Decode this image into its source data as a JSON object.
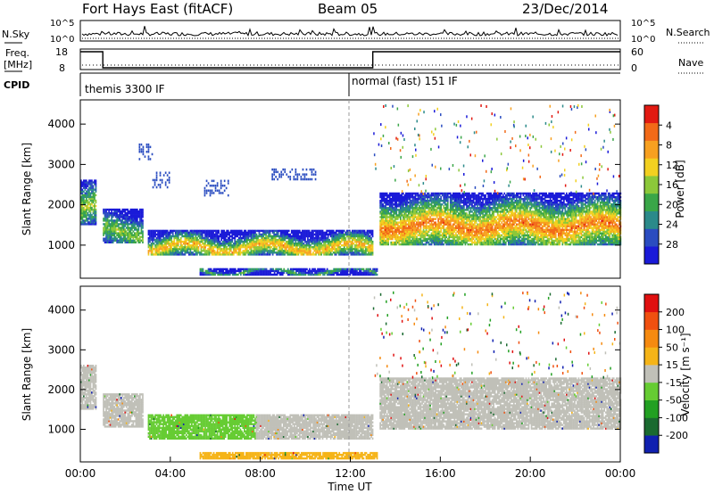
{
  "header": {
    "title": "Fort Hays East (fitACF)",
    "beam": "Beam 05",
    "date": "23/Dec/2014"
  },
  "noise_panel": {
    "left_label": "N.Sky",
    "right_label": "N.Search",
    "left_ticks": [
      "10^5",
      "10^0"
    ],
    "right_ticks": [
      "10^5",
      "10^0"
    ],
    "scale": "log"
  },
  "freq_panel": {
    "left_label_1": "Freq.",
    "left_label_2": "[MHz]",
    "right_label": "Nave",
    "left_ticks": [
      "18",
      "8"
    ],
    "right_ticks": [
      "60",
      "0"
    ],
    "freq_steps": [
      {
        "from_hour": 0,
        "to_hour": 1,
        "value_mhz": 18
      },
      {
        "from_hour": 1,
        "to_hour": 13,
        "value_mhz": 8
      },
      {
        "from_hour": 13,
        "to_hour": 24,
        "value_mhz": 18
      }
    ]
  },
  "cpid": {
    "label": "CPID",
    "modes": [
      {
        "label": "themis 3300 IF",
        "start_hour": 0
      },
      {
        "label": "normal (fast) 151 IF",
        "start_hour": 12
      }
    ]
  },
  "chart_data": [
    {
      "type": "heatmap",
      "quantity": "Power",
      "ylabel": "Slant Range [km]",
      "ylim": [
        180,
        4600
      ],
      "yticks": [
        1000,
        2000,
        3000,
        4000
      ],
      "xlim": [
        0,
        24
      ],
      "colorbar_label": "Power [dB]",
      "colorbar_ticks": [
        "4",
        "8",
        "12",
        "16",
        "20",
        "24",
        "28"
      ],
      "colorbar_colors": [
        "#1a1ad8",
        "#2a4cc0",
        "#2b8a8a",
        "#3aa648",
        "#8cc83a",
        "#f2d020",
        "#f7a020",
        "#f26a18",
        "#e21a12"
      ],
      "regions": [
        {
          "start": 0.0,
          "end": 0.7,
          "lo": 1500,
          "hi": 2600,
          "core": 1900,
          "level": 0.55
        },
        {
          "start": 1.0,
          "end": 2.8,
          "lo": 1050,
          "hi": 1900,
          "core": 1300,
          "level": 0.5
        },
        {
          "start": 3.0,
          "end": 13.0,
          "lo": 750,
          "hi": 1350,
          "core": 920,
          "level": 0.72
        },
        {
          "start": 13.3,
          "end": 24.0,
          "lo": 1000,
          "hi": 2300,
          "core": 1450,
          "level": 0.82
        },
        {
          "start": 5.3,
          "end": 13.2,
          "lo": 250,
          "hi": 420,
          "core": 330,
          "level": 0.45
        }
      ],
      "clusters": [
        {
          "start": 2.6,
          "end": 3.2,
          "lo": 3100,
          "hi": 3500
        },
        {
          "start": 3.2,
          "end": 4.0,
          "lo": 2400,
          "hi": 2800
        },
        {
          "start": 5.5,
          "end": 6.6,
          "lo": 2200,
          "hi": 2600
        },
        {
          "start": 8.5,
          "end": 10.5,
          "lo": 2600,
          "hi": 2900
        }
      ]
    },
    {
      "type": "heatmap",
      "quantity": "Velocity",
      "ylabel": "Slant Range [km]",
      "ylim": [
        180,
        4600
      ],
      "yticks": [
        1000,
        2000,
        3000,
        4000
      ],
      "xlim": [
        0,
        24
      ],
      "colorbar_label": "Velocity [m s⁻¹]",
      "colorbar_ticks": [
        "200",
        "100",
        "50",
        "15",
        "-15",
        "-50",
        "-100",
        "-200"
      ],
      "colorbar_colors": [
        "#1020b0",
        "#1a6a30",
        "#22a022",
        "#66cc33",
        "#c0c0b8",
        "#f5b418",
        "#f58a10",
        "#f05010",
        "#e01010"
      ],
      "regions": [
        {
          "start": 0.0,
          "end": 0.7,
          "lo": 1500,
          "hi": 2600,
          "color": "#c0c0b8"
        },
        {
          "start": 1.0,
          "end": 2.8,
          "lo": 1050,
          "hi": 1900,
          "color": "#c0c0b8"
        },
        {
          "start": 3.0,
          "end": 7.8,
          "lo": 750,
          "hi": 1350,
          "color": "#66cc33"
        },
        {
          "start": 7.8,
          "end": 13.0,
          "lo": 750,
          "hi": 1350,
          "color": "#c0c0b8"
        },
        {
          "start": 13.3,
          "end": 24.0,
          "lo": 1000,
          "hi": 2300,
          "color": "#c0c0b8"
        },
        {
          "start": 5.3,
          "end": 13.2,
          "lo": 250,
          "hi": 420,
          "color": "#f5b418"
        }
      ]
    }
  ],
  "x_axis": {
    "label": "Time UT",
    "ticks": [
      "00:00",
      "04:00",
      "08:00",
      "12:00",
      "16:00",
      "20:00",
      "00:00"
    ],
    "tick_hours": [
      0,
      4,
      8,
      12,
      16,
      20,
      24
    ]
  }
}
